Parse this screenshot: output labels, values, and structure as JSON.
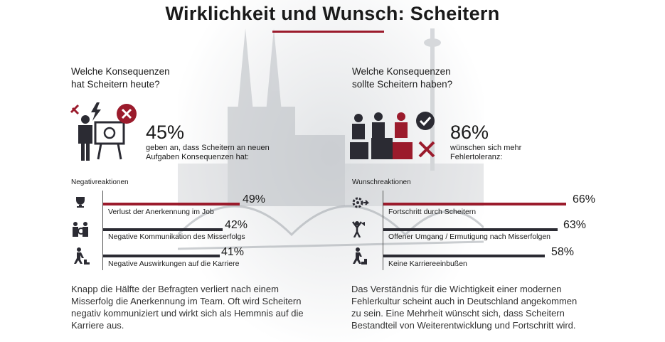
{
  "title": "Wirklichkeit und Wunsch: Scheitern",
  "colors": {
    "accent": "#9b1b2c",
    "dark": "#2b2b33"
  },
  "left": {
    "question_line1": "Welche Konsequenzen",
    "question_line2": "hat Scheitern heute?",
    "big_percent": "45%",
    "sub_line1": "geben an, dass Scheitern an neuen",
    "sub_line2": "Aufgaben Konsequenzen hat:",
    "section_label": "Negativreaktionen",
    "items": [
      {
        "label": "Verlust der Anerkennung im Job",
        "value": 49,
        "percent": "49%",
        "icon": "trophy-icon"
      },
      {
        "label": "Negative Kommunikation des Misserfolgs",
        "value": 42,
        "percent": "42%",
        "icon": "people-icon"
      },
      {
        "label": "Negative Auswirkungen auf die Karriere",
        "value": 41,
        "percent": "41%",
        "icon": "stairs-down-icon"
      }
    ],
    "paragraph": "Knapp die Hälfte der Befragten verliert nach einem Misserfolg die Anerkennung im Team. Oft wird Scheitern negativ kommuniziert und wirkt sich als Hemmnis auf die Karriere aus."
  },
  "right": {
    "question_line1": "Welche Konsequenzen",
    "question_line2": "sollte Scheitern haben?",
    "big_percent": "86%",
    "sub_line1": "wünschen sich mehr",
    "sub_line2": "Fehlertoleranz:",
    "section_label": "Wunschreaktionen",
    "items": [
      {
        "label": "Fortschritt durch Scheitern",
        "value": 66,
        "percent": "66%",
        "icon": "gear-arrow-icon"
      },
      {
        "label": "Offener Umgang / Ermutigung nach Misserfolgen",
        "value": 63,
        "percent": "63%",
        "icon": "megaphone-person-icon"
      },
      {
        "label": "Keine Karriereeinbußen",
        "value": 58,
        "percent": "58%",
        "icon": "stairs-up-icon"
      }
    ],
    "paragraph": "Das Verständnis für die Wichtigkeit einer modernen Fehlerkultur scheint auch in Deutschland angekommen zu sein. Eine Mehrheit wünscht sich, dass Scheitern Bestandteil von Weiterentwicklung und Fortschritt wird."
  }
}
